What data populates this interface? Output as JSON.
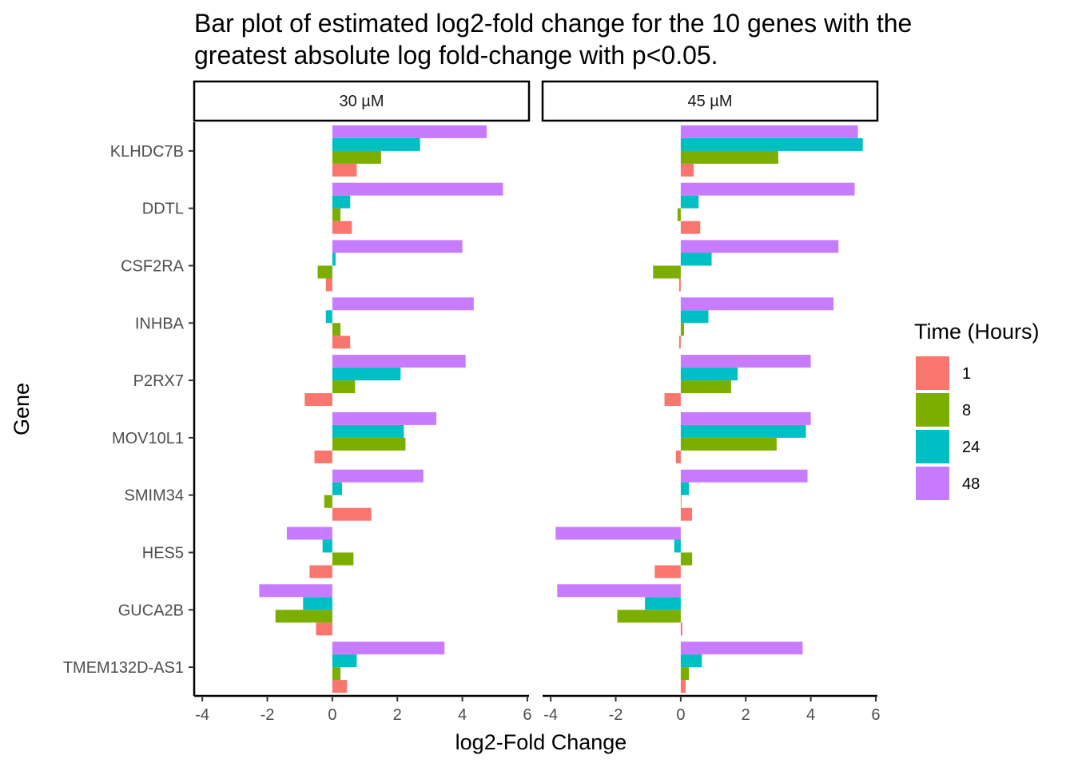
{
  "chart_data": {
    "type": "bar",
    "orientation": "horizontal",
    "title": "Bar plot of estimated log2-fold change for the 10 genes with the greatest absolute log fold-change with p<0.05.",
    "title_lines": [
      "Bar plot of estimated log2-fold change for the 10 genes with the",
      "greatest absolute log fold-change with p<0.05."
    ],
    "xlabel": "log2-Fold Change",
    "ylabel": "Gene",
    "xlim": [
      -4.25,
      6.05
    ],
    "x_ticks": [
      -4,
      -2,
      0,
      2,
      4,
      6
    ],
    "x_tick_labels": [
      "-4",
      "-2",
      "0",
      "2",
      "4",
      "6"
    ],
    "grid": false,
    "categories": [
      "KLHDC7B",
      "DDTL",
      "CSF2RA",
      "INHBA",
      "P2RX7",
      "MOV10L1",
      "SMIM34",
      "HES5",
      "GUCA2B",
      "TMEM132D-AS1"
    ],
    "legend": {
      "title": "Time (Hours)",
      "position": "right",
      "entries": [
        {
          "label": "1",
          "color": "#F8766D"
        },
        {
          "label": "8",
          "color": "#7CAE00"
        },
        {
          "label": "24",
          "color": "#00BFC4"
        },
        {
          "label": "48",
          "color": "#C77CFF"
        }
      ]
    },
    "panels": [
      {
        "label": "30 µM",
        "series": [
          {
            "name": "1",
            "color": "#F8766D",
            "values": [
              0.75,
              0.6,
              -0.2,
              0.55,
              -0.85,
              -0.55,
              1.2,
              -0.7,
              -0.5,
              0.45
            ]
          },
          {
            "name": "8",
            "color": "#7CAE00",
            "values": [
              1.5,
              0.25,
              -0.45,
              0.25,
              0.7,
              2.25,
              -0.25,
              0.65,
              -1.75,
              0.25
            ]
          },
          {
            "name": "24",
            "color": "#00BFC4",
            "values": [
              2.7,
              0.55,
              0.1,
              -0.2,
              2.1,
              2.2,
              0.3,
              -0.3,
              -0.9,
              0.75
            ]
          },
          {
            "name": "48",
            "color": "#C77CFF",
            "values": [
              4.75,
              5.25,
              4.0,
              4.35,
              4.1,
              3.2,
              2.8,
              -1.4,
              -2.25,
              3.45
            ]
          }
        ]
      },
      {
        "label": "45 µM",
        "series": [
          {
            "name": "1",
            "color": "#F8766D",
            "values": [
              0.4,
              0.6,
              -0.05,
              -0.05,
              -0.5,
              -0.15,
              0.35,
              -0.8,
              0.05,
              0.15
            ]
          },
          {
            "name": "8",
            "color": "#7CAE00",
            "values": [
              3.0,
              -0.1,
              -0.85,
              0.1,
              1.55,
              2.95,
              0.0,
              0.35,
              -1.95,
              0.25
            ]
          },
          {
            "name": "24",
            "color": "#00BFC4",
            "values": [
              5.6,
              0.55,
              0.95,
              0.85,
              1.75,
              3.85,
              0.25,
              -0.2,
              -1.1,
              0.65
            ]
          },
          {
            "name": "48",
            "color": "#C77CFF",
            "values": [
              5.45,
              5.35,
              4.85,
              4.7,
              4.0,
              4.0,
              3.9,
              -3.85,
              -3.8,
              3.75
            ]
          }
        ]
      }
    ]
  }
}
